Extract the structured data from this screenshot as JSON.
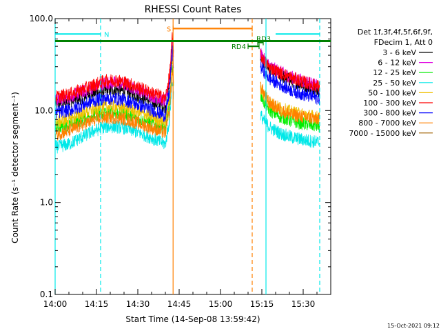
{
  "chart_data": {
    "type": "line",
    "title": "RHESSI Count Rates",
    "xlabel": "Start Time (14-Sep-08 13:59:42)",
    "ylabel": "Count Rate (s⁻¹ detector segment⁻¹)",
    "yscale": "log",
    "ylim": [
      0.1,
      100.0
    ],
    "xlim_minutes": [
      0,
      100
    ],
    "x_ticks": [
      {
        "min": 0,
        "label": "14:00"
      },
      {
        "min": 15,
        "label": "14:15"
      },
      {
        "min": 30,
        "label": "14:30"
      },
      {
        "min": 45,
        "label": "14:45"
      },
      {
        "min": 60,
        "label": "15:00"
      },
      {
        "min": 75,
        "label": "15:15"
      },
      {
        "min": 90,
        "label": "15:30"
      }
    ],
    "y_ticks": [
      {
        "value": 0.1,
        "label": "0.1"
      },
      {
        "value": 1.0,
        "label": "1.0"
      },
      {
        "value": 10.0,
        "label": "10.0"
      },
      {
        "value": 100.0,
        "label": "100.0"
      }
    ],
    "legend_position": "right",
    "legend_header": [
      "Det 1f,3f,4f,5f,6f,9f,",
      "FDecim 1, Att 0"
    ],
    "series": [
      {
        "name": "3 - 6 keV",
        "color": "#000000",
        "x": [
          0,
          5,
          10,
          14,
          18,
          22,
          26,
          30,
          34,
          38,
          40,
          41.5,
          42.5,
          43,
          74.5,
          76,
          78,
          82,
          86,
          90,
          94,
          96
        ],
        "y": [
          12,
          12.5,
          14,
          15.5,
          16.5,
          17,
          16,
          14.5,
          13,
          11.5,
          11,
          20,
          55,
          40,
          40,
          33,
          28,
          24,
          21,
          19,
          17.5,
          16.5
        ]
      },
      {
        "name": "6 - 12 keV",
        "color": "#e000e0",
        "x": [
          0,
          5,
          10,
          14,
          18,
          22,
          26,
          30,
          34,
          38,
          40,
          41.5,
          42.5,
          43,
          74.5,
          76,
          78,
          82,
          86,
          90,
          94,
          96
        ],
        "y": [
          13,
          14,
          16,
          18,
          20,
          20,
          19,
          17,
          15,
          13.5,
          12.5,
          22,
          60,
          42,
          42,
          35,
          30,
          26,
          23,
          21,
          19,
          18
        ]
      },
      {
        "name": "12 - 25 keV",
        "color": "#00ee00",
        "x": [
          0,
          5,
          10,
          14,
          18,
          22,
          26,
          30,
          34,
          38,
          40,
          41.5,
          42.5,
          43,
          74.5,
          76,
          78,
          82,
          86,
          90,
          94,
          96
        ],
        "y": [
          6.5,
          7,
          8,
          9,
          9.5,
          9.5,
          9,
          8.2,
          7.5,
          6.7,
          6.4,
          12,
          30,
          20,
          15,
          12,
          10,
          8.5,
          7.7,
          7.2,
          6.9,
          6.7
        ]
      },
      {
        "name": "25 - 50 keV",
        "color": "#00e8e8",
        "x": [
          0,
          5,
          10,
          14,
          18,
          22,
          26,
          30,
          34,
          38,
          40,
          41.5,
          42.5,
          43,
          74.5,
          76,
          78,
          82,
          86,
          90,
          94,
          96
        ],
        "y": [
          4,
          4.3,
          5.2,
          6,
          6.6,
          6.7,
          6.4,
          5.8,
          5.2,
          4.6,
          4.3,
          8,
          22,
          14,
          9,
          7.5,
          6.5,
          5.6,
          5.1,
          4.8,
          4.6,
          4.5
        ]
      },
      {
        "name": "50 - 100 keV",
        "color": "#f0c000",
        "x": [
          0,
          5,
          10,
          14,
          18,
          22,
          26,
          30,
          34,
          38,
          40,
          41.5,
          42.5,
          43,
          74.5,
          76,
          78,
          82,
          86,
          90,
          94,
          96
        ],
        "y": [
          7.5,
          8,
          9.3,
          10.3,
          11,
          11,
          10.5,
          9.6,
          8.8,
          7.9,
          7.5,
          14,
          35,
          22,
          18,
          14.5,
          12,
          10.5,
          9.6,
          9,
          8.6,
          8.3
        ]
      },
      {
        "name": "100 - 300 keV",
        "color": "#ff0000",
        "x": [
          0,
          5,
          10,
          14,
          18,
          22,
          26,
          30,
          34,
          38,
          40,
          41.5,
          42.5,
          43,
          74.5,
          76,
          78,
          82,
          86,
          90,
          94,
          96
        ],
        "y": [
          14,
          15,
          17,
          19,
          21,
          21.5,
          20,
          18,
          16,
          14.5,
          13.5,
          24,
          62,
          44,
          40,
          34,
          29,
          25.5,
          22.5,
          20.5,
          19,
          18
        ]
      },
      {
        "name": "300 - 800 keV",
        "color": "#0000ff",
        "x": [
          0,
          5,
          10,
          14,
          18,
          22,
          26,
          30,
          34,
          38,
          40,
          41.5,
          42.5,
          43,
          74.5,
          76,
          78,
          82,
          86,
          90,
          94,
          96
        ],
        "y": [
          9.5,
          10,
          11.5,
          12.8,
          13.5,
          13.5,
          12.8,
          11.6,
          10.5,
          9.3,
          8.8,
          16,
          45,
          30,
          30,
          26,
          22,
          19,
          16.5,
          15,
          14,
          13.5
        ]
      },
      {
        "name": "800 - 7000 keV",
        "color": "#ff8000",
        "x": [
          0,
          5,
          10,
          14,
          18,
          22,
          26,
          30,
          34,
          38,
          40,
          41.5,
          42.5,
          43,
          74.5,
          76,
          78,
          82,
          86,
          90,
          94,
          96
        ],
        "y": [
          5.5,
          6,
          7,
          7.9,
          8.4,
          8.4,
          8,
          7.3,
          6.6,
          6,
          5.7,
          10,
          28,
          17,
          19,
          14.5,
          12,
          10,
          9,
          8.5,
          8.2,
          8
        ]
      },
      {
        "name": "7000 - 15000 keV",
        "color": "#a06000",
        "x": [],
        "y": []
      }
    ],
    "annotations": [
      {
        "label": "N",
        "kind": "bar",
        "color": "#00e8e8",
        "x_start": 0,
        "x_end": 16.5,
        "y": 68
      },
      {
        "label": "",
        "kind": "bar",
        "color": "#00e8e8",
        "x_start": 80,
        "x_end": 96,
        "y": 68
      },
      {
        "label": "S",
        "kind": "bar",
        "color": "#ff8000",
        "x_start": 42.8,
        "x_end": 71.5,
        "y": 78
      },
      {
        "label": "RD4",
        "kind": "bar",
        "color": "#008000",
        "x_start": 70,
        "x_end": 74,
        "y": 50
      },
      {
        "label": "RD3",
        "kind": "bar",
        "color": "#008000",
        "x_start": 73.5,
        "x_end": 75.5,
        "y": 55
      },
      {
        "label": "",
        "kind": "hline",
        "color": "#008000",
        "x_start": 0,
        "x_end": 100,
        "y": 57
      }
    ],
    "vertical_lines": [
      {
        "x": 0,
        "color": "#00e8e8",
        "style": "solid"
      },
      {
        "x": 16.5,
        "color": "#00e8e8",
        "style": "dashed"
      },
      {
        "x": 42.8,
        "color": "#ff8000",
        "style": "solid"
      },
      {
        "x": 71.5,
        "color": "#ff8000",
        "style": "dashed"
      },
      {
        "x": 76.5,
        "color": "#00e8e8",
        "style": "solid"
      },
      {
        "x": 96,
        "color": "#00e8e8",
        "style": "dashed"
      }
    ]
  },
  "footer": {
    "timestamp": "15-Oct-2021 09:12"
  }
}
